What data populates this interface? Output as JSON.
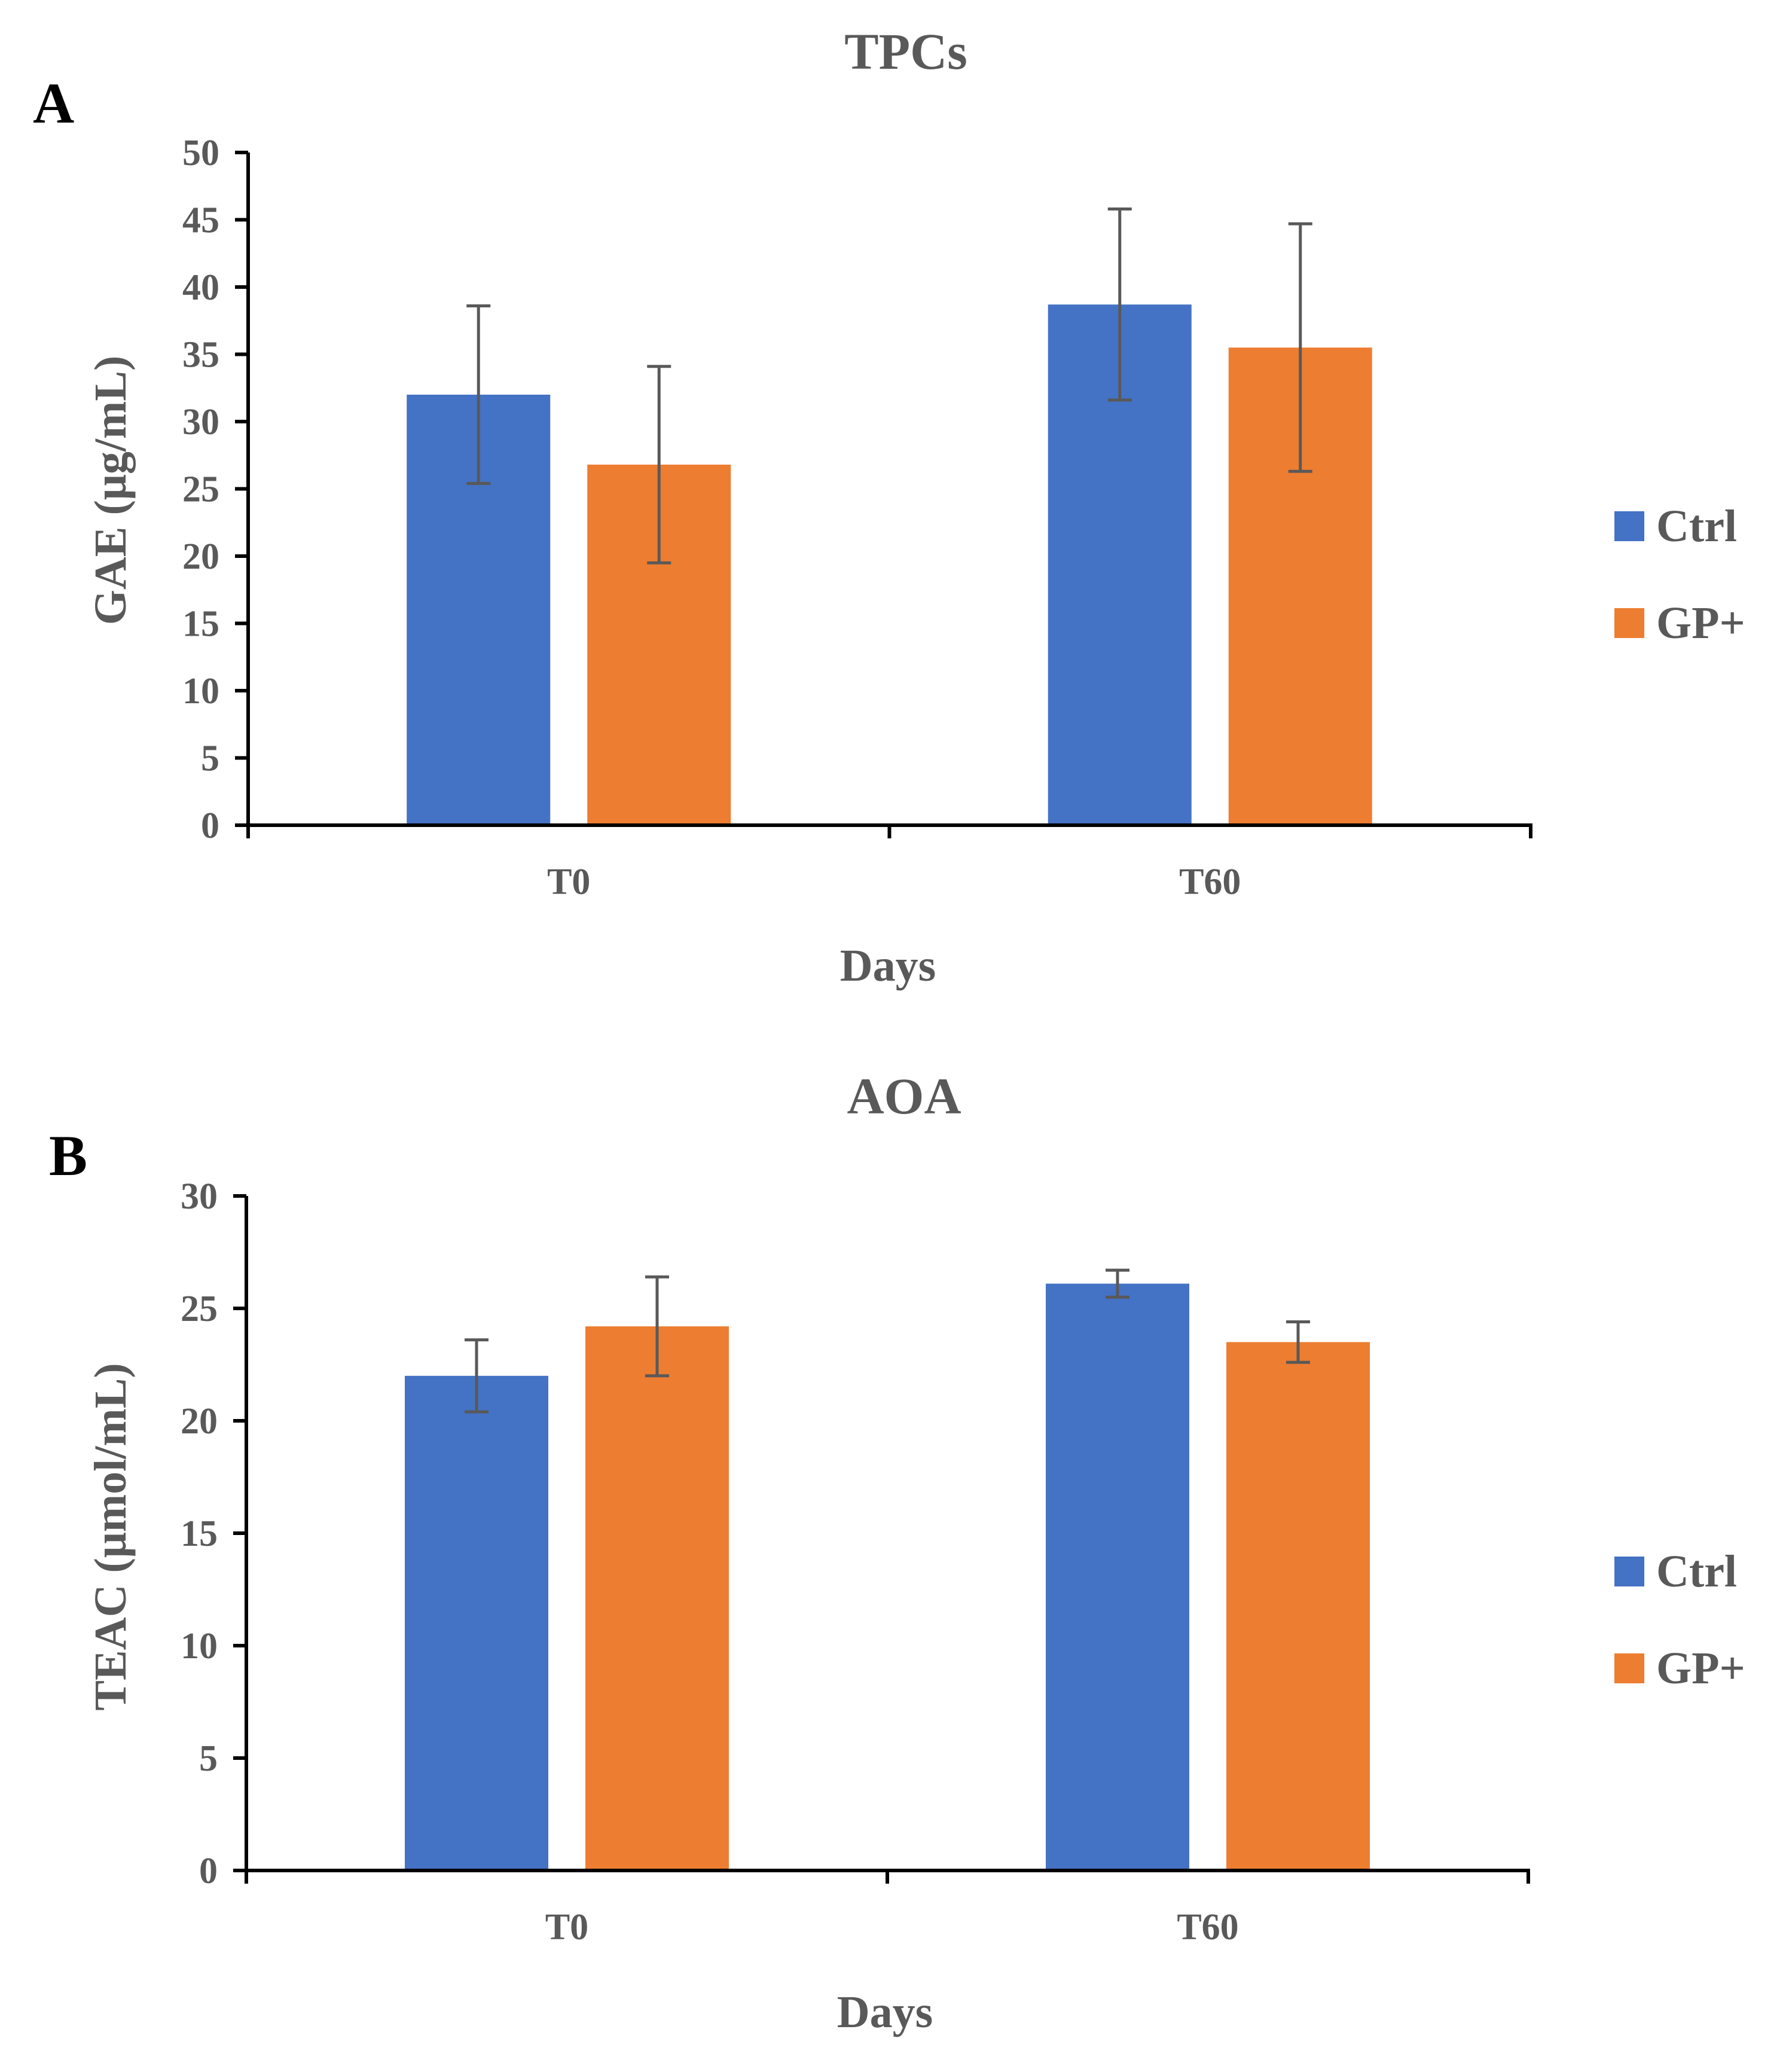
{
  "colors": {
    "ctrl": "#4472C4",
    "gp": "#ED7D31",
    "axis": "#000000",
    "text": "#595959",
    "errorbar": "#595959"
  },
  "chart_data": [
    {
      "panel": "A",
      "type": "bar",
      "title": "TPCs",
      "xlabel": "Days",
      "ylabel": "GAE (μg/mL)",
      "categories": [
        "T0",
        "T60"
      ],
      "ylim": [
        0,
        50
      ],
      "yticks": [
        "0",
        "5",
        "10",
        "15",
        "20",
        "25",
        "30",
        "35",
        "40",
        "45",
        "50"
      ],
      "series": [
        {
          "name": "Ctrl",
          "color": "#4472C4",
          "values": [
            32,
            38.7
          ],
          "errors": [
            6.6,
            7.1
          ]
        },
        {
          "name": "GP+",
          "color": "#ED7D31",
          "values": [
            26.8,
            35.5
          ],
          "errors": [
            7.3,
            9.2
          ]
        }
      ],
      "legend": "right"
    },
    {
      "panel": "B",
      "type": "bar",
      "title": "AOA",
      "xlabel": "Days",
      "ylabel": "TEAC (μmol/mL)",
      "categories": [
        "T0",
        "T60"
      ],
      "ylim": [
        0,
        30
      ],
      "yticks": [
        "0",
        "5",
        "10",
        "15",
        "20",
        "25",
        "30"
      ],
      "series": [
        {
          "name": "Ctrl",
          "color": "#4472C4",
          "values": [
            22,
            26.1
          ],
          "errors": [
            1.6,
            0.6
          ]
        },
        {
          "name": "GP+",
          "color": "#ED7D31",
          "values": [
            24.2,
            23.5
          ],
          "errors": [
            2.2,
            0.9
          ]
        }
      ],
      "legend": "right"
    }
  ]
}
